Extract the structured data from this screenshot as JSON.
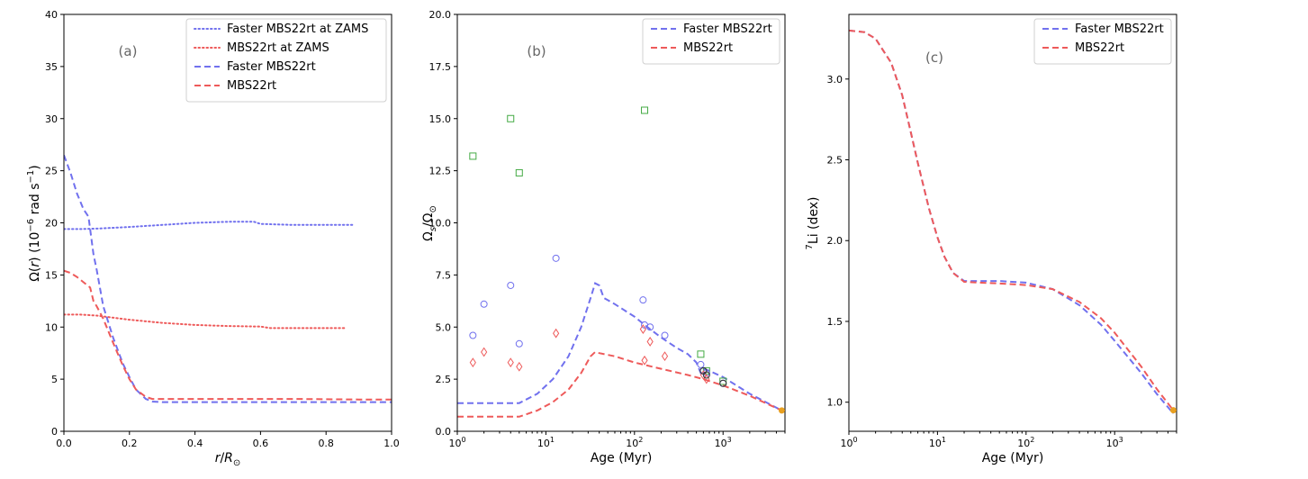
{
  "colors": {
    "blue": "#7171ee",
    "red": "#ee5a5a",
    "green": "#44aa44",
    "orange": "#e8a020",
    "black": "#333333"
  },
  "chart_data": [
    {
      "type": "line",
      "panel_label": "(a)",
      "xlabel_r": "r",
      "xlabel_R": "R",
      "xlabel_sub": "⊙",
      "ylabel_pre": "Ω(",
      "ylabel_r": "r",
      "ylabel_mid": ") (10",
      "ylabel_exp1": "−6",
      "ylabel_unit": " rad s",
      "ylabel_exp2": "−1",
      "ylabel_post": ")",
      "xlim": [
        0,
        1.0
      ],
      "ylim": [
        0,
        40
      ],
      "xticks": [
        "0.0",
        "0.2",
        "0.4",
        "0.6",
        "0.8",
        "1.0"
      ],
      "yticks": [
        "0",
        "5",
        "10",
        "15",
        "20",
        "25",
        "30",
        "35",
        "40"
      ],
      "series": [
        {
          "name": "Faster MBS22rt at ZAMS",
          "style": "dotted",
          "color": "blue",
          "x": [
            0,
            0.05,
            0.1,
            0.2,
            0.3,
            0.4,
            0.5,
            0.58,
            0.6,
            0.7,
            0.8,
            0.88
          ],
          "y": [
            19.4,
            19.4,
            19.45,
            19.6,
            19.8,
            20.0,
            20.1,
            20.1,
            19.9,
            19.8,
            19.8,
            19.8
          ]
        },
        {
          "name": "MBS22rt at ZAMS",
          "style": "dotted",
          "color": "red",
          "x": [
            0,
            0.05,
            0.1,
            0.2,
            0.3,
            0.4,
            0.5,
            0.6,
            0.63,
            0.7,
            0.86
          ],
          "y": [
            11.2,
            11.2,
            11.1,
            10.7,
            10.4,
            10.2,
            10.1,
            10.05,
            9.9,
            9.9,
            9.9
          ]
        },
        {
          "name": "Faster MBS22rt",
          "style": "dashed",
          "color": "blue",
          "x": [
            0,
            0.02,
            0.04,
            0.06,
            0.075,
            0.09,
            0.1,
            0.12,
            0.15,
            0.18,
            0.2,
            0.22,
            0.25,
            0.27,
            0.3,
            0.5,
            0.7,
            0.9,
            1.0
          ],
          "y": [
            26.5,
            24.8,
            22.8,
            21.3,
            20.6,
            17.0,
            15.5,
            12.0,
            9.0,
            6.5,
            5.2,
            4.0,
            3.1,
            2.85,
            2.8,
            2.8,
            2.8,
            2.8,
            2.8
          ]
        },
        {
          "name": "MBS22rt",
          "style": "dashed",
          "color": "red",
          "x": [
            0,
            0.02,
            0.04,
            0.06,
            0.08,
            0.09,
            0.1,
            0.12,
            0.15,
            0.18,
            0.2,
            0.22,
            0.25,
            0.27,
            0.3,
            0.5,
            0.7,
            0.9,
            1.0
          ],
          "y": [
            15.4,
            15.2,
            14.8,
            14.3,
            13.8,
            12.5,
            12.0,
            10.8,
            8.5,
            6.3,
            5.0,
            4.0,
            3.3,
            3.1,
            3.1,
            3.1,
            3.1,
            3.05,
            3.05
          ]
        }
      ],
      "legend": [
        "Faster MBS22rt at ZAMS",
        "MBS22rt at ZAMS",
        "Faster MBS22rt",
        "MBS22rt"
      ],
      "legend_position": "top-right"
    },
    {
      "type": "line",
      "panel_label": "(b)",
      "xlabel": "Age (Myr)",
      "ylabel_pre": "Ω",
      "ylabel_sub1": "s",
      "ylabel_mid": "/Ω",
      "ylabel_sub2": "⊙",
      "xscale": "log",
      "xlim": [
        1,
        5000
      ],
      "ylim": [
        0,
        20
      ],
      "xticks_log": [
        1,
        10,
        100,
        1000
      ],
      "xtick_base": "10",
      "xtick_exps": [
        "0",
        "1",
        "2",
        "3"
      ],
      "yticks": [
        "0.0",
        "2.5",
        "5.0",
        "7.5",
        "10.0",
        "12.5",
        "15.0",
        "17.5",
        "20.0"
      ],
      "series": [
        {
          "name": "Faster MBS22rt",
          "style": "dashed",
          "color": "blue",
          "x": [
            1,
            2,
            5,
            8,
            12,
            18,
            25,
            32,
            36,
            40,
            45,
            60,
            100,
            140,
            200,
            300,
            400,
            500,
            560,
            600,
            700,
            1000,
            2000,
            4600
          ],
          "y": [
            1.35,
            1.35,
            1.35,
            1.8,
            2.5,
            3.6,
            5.0,
            6.4,
            7.1,
            7.0,
            6.4,
            6.1,
            5.5,
            5.0,
            4.5,
            4.0,
            3.7,
            3.3,
            2.8,
            3.0,
            2.9,
            2.6,
            1.8,
            1.0
          ]
        },
        {
          "name": "MBS22rt",
          "style": "dashed",
          "color": "red",
          "x": [
            1,
            2,
            5,
            8,
            12,
            18,
            25,
            32,
            36,
            40,
            60,
            100,
            200,
            400,
            600,
            1000,
            2000,
            4600
          ],
          "y": [
            0.7,
            0.7,
            0.7,
            1.0,
            1.4,
            2.0,
            2.8,
            3.6,
            3.8,
            3.75,
            3.6,
            3.3,
            3.0,
            2.7,
            2.5,
            2.2,
            1.7,
            1.0
          ]
        }
      ],
      "markers": [
        {
          "shape": "square",
          "color": "green",
          "x": [
            1.5,
            4,
            5,
            130,
            560,
            650,
            1000
          ],
          "y": [
            13.2,
            15.0,
            12.4,
            15.4,
            3.7,
            2.9,
            2.4
          ]
        },
        {
          "shape": "circle",
          "color": "blue",
          "x": [
            1.5,
            2,
            4,
            5,
            13,
            125,
            130,
            150,
            220,
            560,
            600,
            650,
            1000
          ],
          "y": [
            4.6,
            6.1,
            7.0,
            4.2,
            8.3,
            6.3,
            5.1,
            5.0,
            4.6,
            3.2,
            2.9,
            2.8,
            2.3
          ]
        },
        {
          "shape": "diamond",
          "color": "red",
          "x": [
            1.5,
            2,
            4,
            5,
            13,
            125,
            130,
            150,
            220,
            600,
            650
          ],
          "y": [
            3.3,
            3.8,
            3.3,
            3.1,
            4.7,
            4.9,
            3.4,
            4.3,
            3.6,
            2.7,
            2.5
          ]
        },
        {
          "shape": "circle",
          "color": "black",
          "x": [
            600,
            650,
            1000
          ],
          "y": [
            2.9,
            2.7,
            2.3
          ]
        },
        {
          "shape": "circle",
          "color": "orange",
          "x": [
            4600
          ],
          "y": [
            1.0
          ]
        }
      ],
      "legend": [
        "Faster MBS22rt",
        "MBS22rt"
      ],
      "legend_position": "top-right"
    },
    {
      "type": "line",
      "panel_label": "(c)",
      "xlabel": "Age (Myr)",
      "ylabel_sup": "7",
      "ylabel_rest": "Li (dex)",
      "xscale": "log",
      "xlim": [
        1,
        5000
      ],
      "ylim": [
        0.82,
        3.4
      ],
      "xticks_log": [
        1,
        10,
        100,
        1000
      ],
      "xtick_base": "10",
      "xtick_exps": [
        "0",
        "1",
        "2",
        "3"
      ],
      "yticks_vals": [
        1.0,
        1.5,
        2.0,
        2.5,
        3.0
      ],
      "yticks": [
        "1.0",
        "1.5",
        "2.0",
        "2.5",
        "3.0"
      ],
      "series": [
        {
          "name": "Faster MBS22rt",
          "style": "dashed",
          "color": "blue",
          "x": [
            1,
            1.5,
            2,
            3,
            4,
            5,
            6,
            7,
            8,
            10,
            12,
            15,
            20,
            30,
            50,
            100,
            200,
            400,
            700,
            1000,
            2000,
            3000,
            4600
          ],
          "y": [
            3.3,
            3.29,
            3.25,
            3.1,
            2.9,
            2.67,
            2.48,
            2.33,
            2.2,
            2.02,
            1.9,
            1.8,
            1.75,
            1.75,
            1.75,
            1.74,
            1.7,
            1.6,
            1.48,
            1.38,
            1.18,
            1.05,
            0.93
          ]
        },
        {
          "name": "MBS22rt",
          "style": "dashed",
          "color": "red",
          "x": [
            1,
            1.5,
            2,
            3,
            4,
            5,
            6,
            7,
            8,
            10,
            12,
            15,
            20,
            30,
            50,
            100,
            200,
            400,
            700,
            1000,
            2000,
            3000,
            4600
          ],
          "y": [
            3.3,
            3.29,
            3.25,
            3.1,
            2.9,
            2.67,
            2.48,
            2.33,
            2.2,
            2.02,
            1.9,
            1.8,
            1.745,
            1.74,
            1.735,
            1.725,
            1.7,
            1.62,
            1.52,
            1.43,
            1.22,
            1.08,
            0.95
          ]
        }
      ],
      "markers": [
        {
          "shape": "circle",
          "color": "orange",
          "x": [
            4600
          ],
          "y": [
            0.95
          ]
        }
      ],
      "legend": [
        "Faster MBS22rt",
        "MBS22rt"
      ],
      "legend_position": "top-right"
    }
  ]
}
